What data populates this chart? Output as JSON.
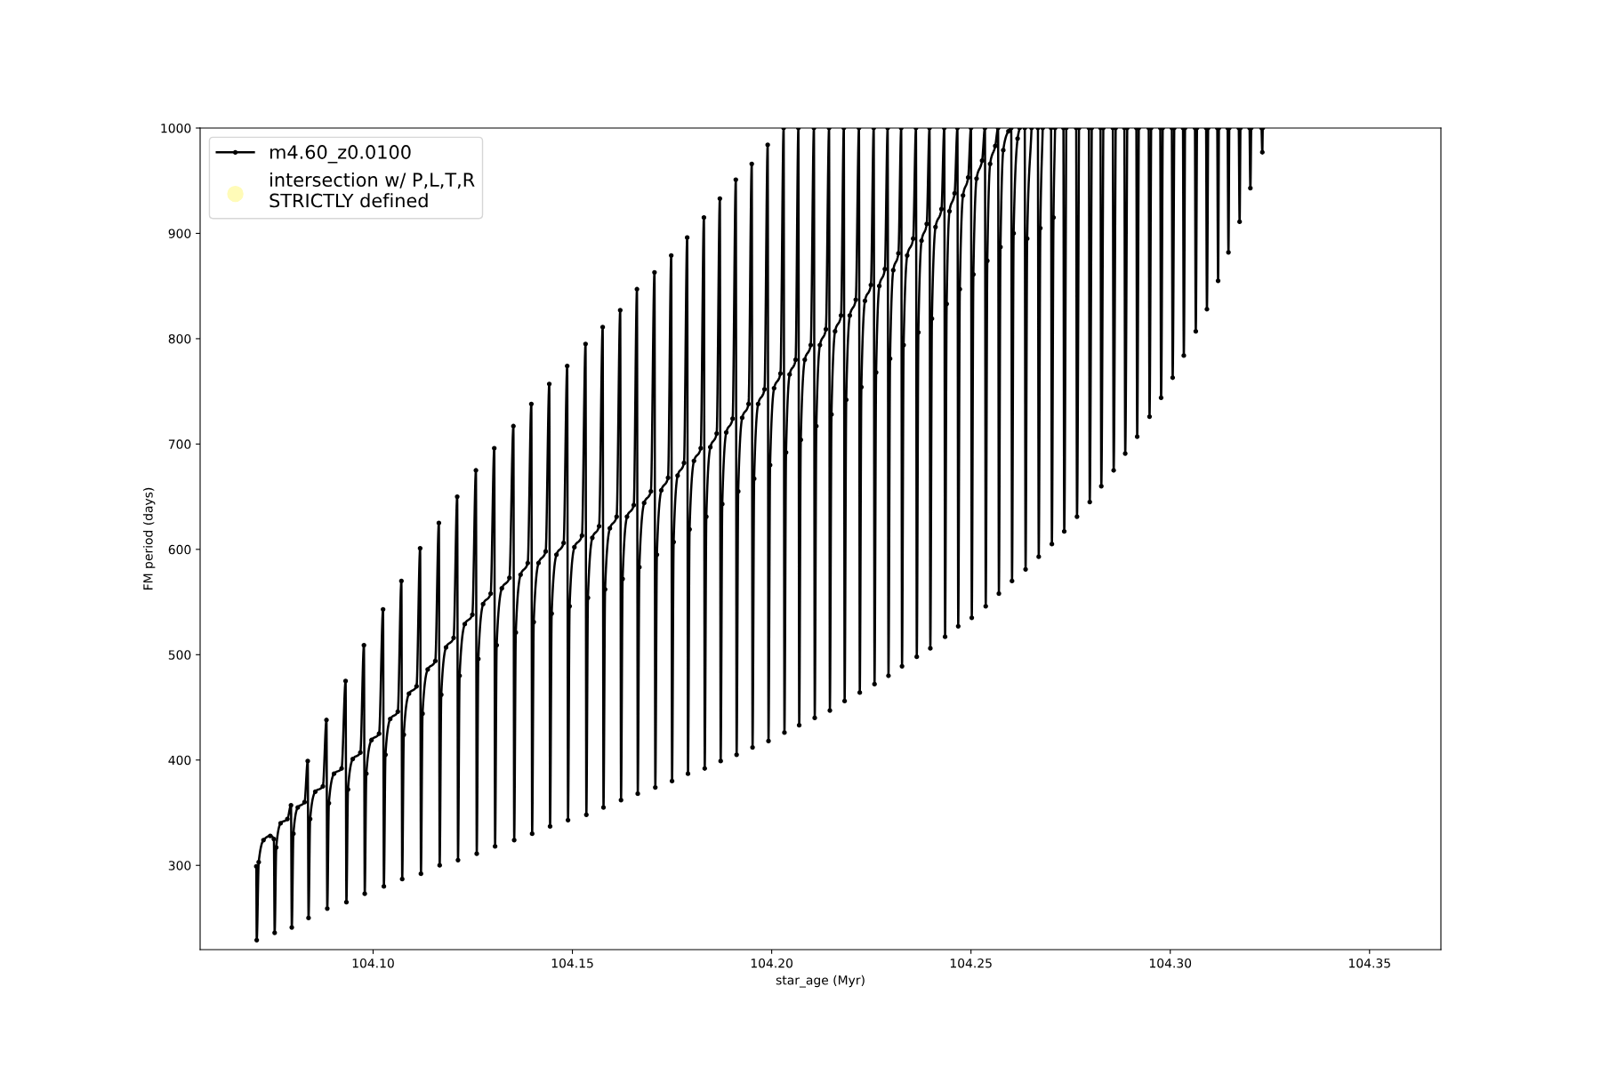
{
  "chart_data": {
    "type": "line",
    "xlabel": "star_age (Myr)",
    "ylabel": "FM period (days)",
    "xlim": [
      104.0566,
      104.3679
    ],
    "ylim": [
      220,
      1000
    ],
    "xticks": [
      {
        "value": 104.1,
        "label": "104.10"
      },
      {
        "value": 104.15,
        "label": "104.15"
      },
      {
        "value": 104.2,
        "label": "104.20"
      },
      {
        "value": 104.25,
        "label": "104.25"
      },
      {
        "value": 104.3,
        "label": "104.30"
      },
      {
        "value": 104.35,
        "label": "104.35"
      }
    ],
    "yticks": [
      300,
      400,
      500,
      600,
      700,
      800,
      900,
      1000
    ],
    "legend": "top left",
    "marker": "circle",
    "line_style": "solid",
    "series": [
      {
        "name": "m4.60_z0.0100",
        "color": "#000000",
        "x": [
          104.0707,
          104.0708,
          104.0713,
          104.0725,
          104.0742,
          104.0751,
          104.0753,
          104.0757,
          104.0768,
          104.0785,
          104.0794,
          104.0796,
          104.08,
          104.0811,
          104.0828,
          104.0836,
          104.0838,
          104.0842,
          104.0855,
          104.0874,
          104.0883,
          104.0885,
          104.0889,
          104.0902,
          104.0921,
          104.0931,
          104.0933,
          104.0937,
          104.0949,
          104.0968,
          104.0977,
          104.0979,
          104.0983,
          104.0996,
          104.1015,
          104.1025,
          104.1027,
          104.1031,
          104.1043,
          104.1062,
          104.1071,
          104.1073,
          104.1077,
          104.109,
          104.1109,
          104.1118,
          104.112,
          104.1124,
          104.1137,
          104.1156,
          104.1165,
          104.1167,
          104.1171,
          104.1183,
          104.1202,
          104.1211,
          104.1213,
          104.1217,
          104.123,
          104.1249,
          104.1258,
          104.126,
          104.1264,
          104.1276,
          104.1295,
          104.1304,
          104.1306,
          104.131,
          104.1323,
          104.1342,
          104.1352,
          104.1354,
          104.1358,
          104.137,
          104.1388,
          104.1397,
          104.1399,
          104.1403,
          104.1415,
          104.1433,
          104.1442,
          104.1444,
          104.1448,
          104.146,
          104.1478,
          104.1487,
          104.1489,
          104.1493,
          104.1505,
          104.1524,
          104.1533,
          104.1535,
          104.1539,
          104.155,
          104.1567,
          104.1576,
          104.1578,
          104.1582,
          104.1594,
          104.1611,
          104.162,
          104.1622,
          104.1626,
          104.1637,
          104.1654,
          104.1662,
          104.1664,
          104.1668,
          104.168,
          104.1697,
          104.1706,
          104.1708,
          104.1712,
          104.1723,
          104.174,
          104.1748,
          104.175,
          104.1754,
          104.1764,
          104.178,
          104.1788,
          104.179,
          104.1794,
          104.1805,
          104.1822,
          104.183,
          104.1832,
          104.1836,
          104.1846,
          104.1862,
          104.187,
          104.1872,
          104.1876,
          104.1886,
          104.1902,
          104.191,
          104.1912,
          104.1916,
          104.1926,
          104.1942,
          104.195,
          104.1952,
          104.1956,
          104.1966,
          104.1982,
          104.199,
          104.1992,
          104.1996,
          104.2006,
          104.2022,
          104.203,
          104.2032,
          104.2036,
          104.2045,
          104.206,
          104.2067,
          104.2069,
          104.2073,
          104.2083,
          104.2098,
          104.2106,
          104.2108,
          104.2112,
          104.2121,
          104.2136,
          104.2144,
          104.2146,
          104.215,
          104.2159,
          104.2174,
          104.2181,
          104.2183,
          104.2187,
          104.2196,
          104.2211,
          104.2219,
          104.2221,
          104.2225,
          104.2234,
          104.2249,
          104.2256,
          104.2258,
          104.2262,
          104.227,
          104.2284,
          104.2291,
          104.2293,
          104.2297,
          104.2305,
          104.2318,
          104.2325,
          104.2327,
          104.2331,
          104.234,
          104.2355,
          104.2362,
          104.2364,
          104.2368,
          104.2376,
          104.2389,
          104.2396,
          104.2398,
          104.2402,
          104.2411,
          104.2426,
          104.2433,
          104.2435,
          104.2439,
          104.2446,
          104.2459,
          104.2466,
          104.2468,
          104.2472,
          104.248,
          104.2493,
          104.25,
          104.2502,
          104.2506,
          104.2514,
          104.2528,
          104.2535,
          104.2537,
          104.2541,
          104.2548,
          104.2561,
          104.2568,
          104.257,
          104.2574,
          104.2581,
          104.2594,
          104.2601,
          104.2603,
          104.2607,
          104.2617,
          104.2622,
          104.2628,
          104.2635,
          104.2637,
          104.2641,
          104.2652,
          104.266,
          104.2668,
          104.267,
          104.2674,
          104.268,
          104.269,
          104.2701,
          104.2703,
          104.2707,
          104.2711,
          104.272,
          104.2732,
          104.2734,
          104.2739,
          104.2748,
          104.2764,
          104.2766,
          104.2771,
          104.278,
          104.2796,
          104.2798,
          104.2803,
          104.281,
          104.2825,
          104.2827,
          104.2832,
          104.284,
          104.2856,
          104.2858,
          104.2863,
          104.287,
          104.2885,
          104.2887,
          104.2892,
          104.29,
          104.2915,
          104.2917,
          104.2921,
          104.293,
          104.2946,
          104.2948,
          104.2952,
          104.296,
          104.2975,
          104.2977,
          104.2981,
          104.299,
          104.3004,
          104.3006,
          104.301,
          104.302,
          104.3032,
          104.3034,
          104.3037,
          104.305,
          104.3062,
          104.3064,
          104.3067,
          104.308,
          104.309,
          104.3092,
          104.3095,
          104.3105,
          104.3118,
          104.312,
          104.3122,
          104.313,
          104.3144,
          104.3146,
          104.3148,
          104.316,
          104.3172,
          104.3174,
          104.3176,
          104.3185,
          104.3199,
          104.3201,
          104.3203,
          104.3215,
          104.3229,
          104.3231,
          104.3232
        ],
        "values": [
          299,
          229,
          303,
          324,
          328,
          325,
          236,
          317,
          340,
          344,
          357,
          241,
          330,
          355,
          360,
          399,
          250,
          344,
          370,
          375,
          438,
          259,
          359,
          387,
          392,
          475,
          265,
          372,
          401,
          407,
          509,
          273,
          387,
          419,
          425,
          543,
          280,
          405,
          439,
          446,
          570,
          287,
          424,
          463,
          470,
          601,
          292,
          444,
          486,
          494,
          625,
          300,
          462,
          507,
          516,
          650,
          305,
          480,
          529,
          538,
          675,
          311,
          496,
          548,
          558,
          696,
          318,
          509,
          563,
          573,
          717,
          324,
          521,
          576,
          587,
          738,
          330,
          531,
          587,
          598,
          757,
          337,
          539,
          595,
          606,
          774,
          343,
          546,
          602,
          613,
          795,
          348,
          554,
          611,
          622,
          811,
          355,
          562,
          620,
          631,
          827,
          362,
          572,
          631,
          642,
          847,
          368,
          583,
          644,
          655,
          863,
          374,
          595,
          656,
          668,
          879,
          380,
          607,
          670,
          682,
          896,
          387,
          619,
          684,
          696,
          915,
          392,
          631,
          697,
          710,
          933,
          399,
          643,
          711,
          724,
          951,
          405,
          655,
          725,
          738,
          966,
          412,
          667,
          738,
          752,
          984,
          418,
          680,
          753,
          767,
          1000,
          426,
          692,
          766,
          780,
          1000,
          433,
          704,
          780,
          794,
          1000,
          440,
          717,
          794,
          809,
          1000,
          447,
          728,
          807,
          822,
          1000,
          456,
          742,
          822,
          837,
          1000,
          464,
          754,
          836,
          851,
          1000,
          472,
          768,
          850,
          866,
          1000,
          480,
          781,
          865,
          881,
          1000,
          489,
          794,
          879,
          895,
          1000,
          498,
          806,
          893,
          909,
          1000,
          506,
          819,
          906,
          923,
          1000,
          517,
          833,
          921,
          938,
          1000,
          527,
          847,
          936,
          953,
          1000,
          535,
          861,
          952,
          969,
          1000,
          546,
          874,
          966,
          983,
          1000,
          558,
          887,
          979,
          997,
          1000,
          570,
          900,
          990,
          1000,
          null,
          1000,
          581,
          895,
          1000,
          null,
          1000,
          593,
          905,
          1000,
          null,
          1000,
          605,
          915,
          1000,
          null,
          1000,
          617,
          1000,
          null,
          1000,
          631,
          1000,
          null,
          1000,
          645,
          1000,
          null,
          1000,
          660,
          1000,
          null,
          1000,
          675,
          1000,
          null,
          1000,
          691,
          1000,
          null,
          1000,
          707,
          1000,
          null,
          1000,
          726,
          1000,
          null,
          1000,
          744,
          1000,
          null,
          1000,
          763,
          1000,
          null,
          1000,
          784,
          1000,
          null,
          1000,
          807,
          1000,
          null,
          1000,
          828,
          1000,
          null,
          1000,
          855,
          1000,
          null,
          1000,
          882,
          1000,
          null,
          1000,
          911,
          1000,
          null,
          1000,
          943,
          1000,
          null,
          1000,
          977,
          1000
        ]
      },
      {
        "name": "intersection w/ P,L,T,R\nSTRICTLY defined",
        "type": "scatter",
        "color": "#fffbb8"
      }
    ]
  }
}
